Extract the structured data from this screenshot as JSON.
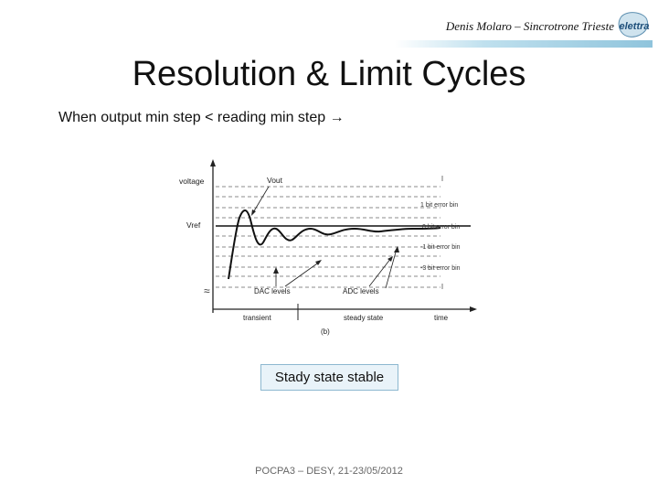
{
  "header": {
    "author": "Denis Molaro – Sincrotrone Trieste",
    "logo_text": "elettra"
  },
  "slide": {
    "title": "Resolution & Limit Cycles",
    "subtitle": "When output min step < reading min step →",
    "caption": "Stady state stable",
    "footer": "POCPA3 – DESY, 21-23/05/2012"
  },
  "figure": {
    "y_label": "voltage",
    "vref_label": "Vref",
    "vout_label": "Vout",
    "dac_label": "DAC levels",
    "adc_label": "ADC levels",
    "x_transient": "transient",
    "x_steady": "steady state",
    "x_time": "time",
    "panel_label": "(b)",
    "right_labels": [
      "1 bit error bin",
      "0 bit error bin",
      "-1 bit error bin",
      "-3 bit error bin"
    ],
    "break_mark": "≈"
  }
}
